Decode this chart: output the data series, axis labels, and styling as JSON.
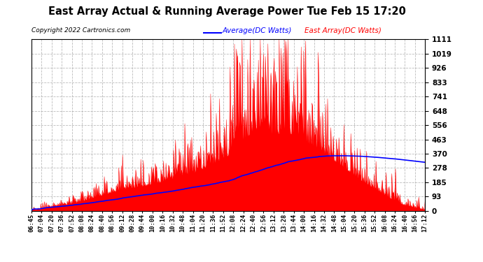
{
  "title": "East Array Actual & Running Average Power Tue Feb 15 17:20",
  "copyright": "Copyright 2022 Cartronics.com",
  "legend_avg": "Average(DC Watts)",
  "legend_east": "East Array(DC Watts)",
  "yticks": [
    0.0,
    92.6,
    185.2,
    277.8,
    370.4,
    463.0,
    555.6,
    648.2,
    740.8,
    833.4,
    926.0,
    1018.6,
    1111.2
  ],
  "ymax": 1111.2,
  "ymin": 0.0,
  "fill_color": "#FF0000",
  "avg_color": "#0000FF",
  "title_color": "#000000",
  "background_color": "#FFFFFF",
  "grid_color": "#AAAAAA",
  "xtick_labels": [
    "06:45",
    "07:04",
    "07:20",
    "07:36",
    "07:52",
    "08:08",
    "08:24",
    "08:40",
    "08:56",
    "09:12",
    "09:28",
    "09:44",
    "10:00",
    "10:16",
    "10:32",
    "10:48",
    "11:04",
    "11:20",
    "11:36",
    "11:52",
    "12:08",
    "12:24",
    "12:40",
    "12:56",
    "13:12",
    "13:28",
    "13:44",
    "14:00",
    "14:16",
    "14:32",
    "14:48",
    "15:04",
    "15:20",
    "15:36",
    "15:52",
    "16:08",
    "16:24",
    "16:40",
    "16:56",
    "17:12"
  ]
}
